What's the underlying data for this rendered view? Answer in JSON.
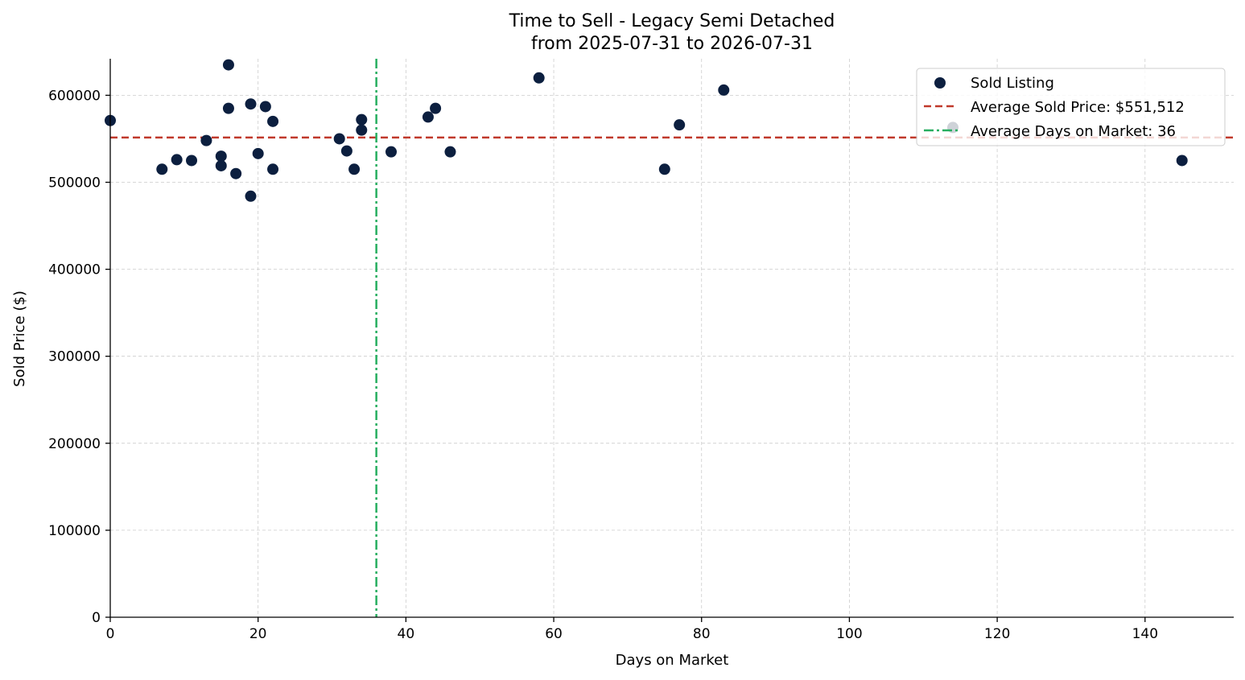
{
  "chart_data": {
    "type": "scatter",
    "title": "Time to Sell - Legacy Semi Detached",
    "subtitle": "from 2025-07-31 to 2026-07-31",
    "xlabel": "Days on Market",
    "ylabel": "Sold Price ($)",
    "xlim": [
      0,
      152
    ],
    "ylim": [
      0,
      642000
    ],
    "x_ticks": [
      0,
      20,
      40,
      60,
      80,
      100,
      120,
      140
    ],
    "y_ticks": [
      0,
      100000,
      200000,
      300000,
      400000,
      500000,
      600000
    ],
    "grid": true,
    "legend_position": "top-right",
    "series": [
      {
        "name": "Sold Listing",
        "color": "#0c1f3f",
        "points": [
          {
            "x": 0,
            "y": 571000
          },
          {
            "x": 7,
            "y": 515000
          },
          {
            "x": 9,
            "y": 526000
          },
          {
            "x": 11,
            "y": 525000
          },
          {
            "x": 13,
            "y": 548000
          },
          {
            "x": 15,
            "y": 530000
          },
          {
            "x": 15,
            "y": 519000
          },
          {
            "x": 16,
            "y": 635000
          },
          {
            "x": 16,
            "y": 585000
          },
          {
            "x": 17,
            "y": 510000
          },
          {
            "x": 19,
            "y": 590000
          },
          {
            "x": 19,
            "y": 484000
          },
          {
            "x": 20,
            "y": 533000
          },
          {
            "x": 21,
            "y": 587000
          },
          {
            "x": 22,
            "y": 570000
          },
          {
            "x": 22,
            "y": 515000
          },
          {
            "x": 31,
            "y": 550000
          },
          {
            "x": 32,
            "y": 536000
          },
          {
            "x": 33,
            "y": 515000
          },
          {
            "x": 34,
            "y": 572000
          },
          {
            "x": 34,
            "y": 560000
          },
          {
            "x": 38,
            "y": 535000
          },
          {
            "x": 43,
            "y": 575000
          },
          {
            "x": 44,
            "y": 585000
          },
          {
            "x": 46,
            "y": 535000
          },
          {
            "x": 58,
            "y": 620000
          },
          {
            "x": 75,
            "y": 515000
          },
          {
            "x": 77,
            "y": 566000
          },
          {
            "x": 83,
            "y": 606000
          },
          {
            "x": 114,
            "y": 563000
          },
          {
            "x": 145,
            "y": 525000
          }
        ]
      }
    ],
    "reference_lines": [
      {
        "name": "Average Sold Price: $551,512",
        "orientation": "horizontal",
        "value": 551512,
        "color": "#c0392b",
        "style": "dashed"
      },
      {
        "name": "Average Days on Market: 36",
        "orientation": "vertical",
        "value": 36,
        "color": "#27ae60",
        "style": "dashdot"
      }
    ]
  }
}
